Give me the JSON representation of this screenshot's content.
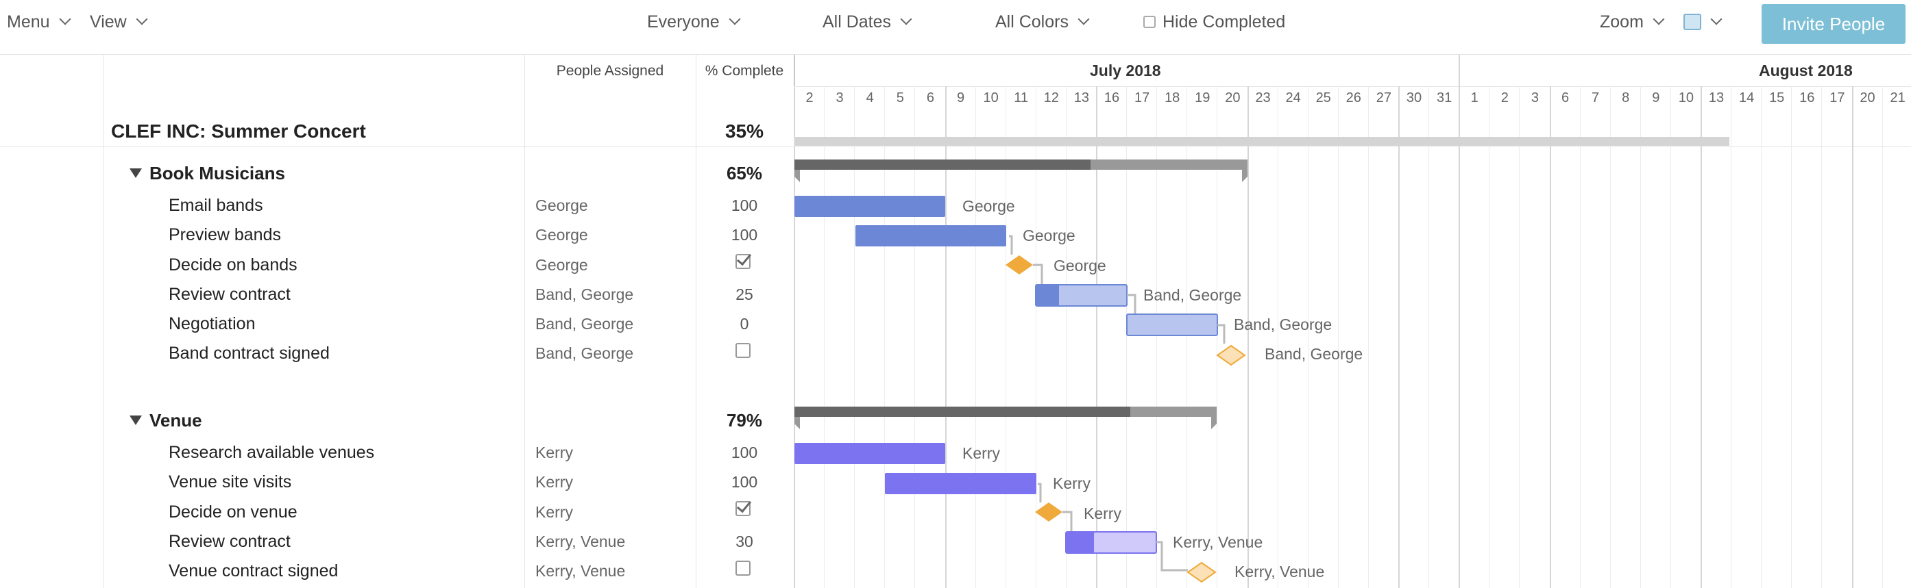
{
  "toolbar": {
    "menu_label": "Menu",
    "view_label": "View",
    "people_filter": "Everyone",
    "dates_filter": "All Dates",
    "colors_filter": "All Colors",
    "hide_completed_label": "Hide Completed",
    "zoom_label": "Zoom",
    "invite_label": "Invite People"
  },
  "columns": {
    "people": "People Assigned",
    "complete": "% Complete"
  },
  "months": [
    "July 2018",
    "August 2018"
  ],
  "days": [
    "2",
    "3",
    "4",
    "5",
    "6",
    "9",
    "10",
    "11",
    "12",
    "13",
    "16",
    "17",
    "18",
    "19",
    "20",
    "23",
    "24",
    "25",
    "26",
    "27",
    "30",
    "31",
    "1",
    "2",
    "3",
    "6",
    "7",
    "8",
    "9",
    "10",
    "13",
    "14",
    "15",
    "16",
    "17",
    "20",
    "21"
  ],
  "project": {
    "name": "CLEF INC: Summer Concert",
    "percent": "35%"
  },
  "groups": [
    {
      "name": "Book Musicians",
      "percent": "65%",
      "tasks": [
        {
          "name": "Email bands",
          "people": "George",
          "complete": "100"
        },
        {
          "name": "Preview bands",
          "people": "George",
          "complete": "100"
        },
        {
          "name": "Decide on bands",
          "people": "George",
          "complete": "checked"
        },
        {
          "name": "Review contract",
          "people": "Band, George",
          "complete": "25"
        },
        {
          "name": "Negotiation",
          "people": "Band, George",
          "complete": "0"
        },
        {
          "name": "Band contract signed",
          "people": "Band, George",
          "complete": "unchecked"
        }
      ]
    },
    {
      "name": "Venue",
      "percent": "79%",
      "tasks": [
        {
          "name": "Research available venues",
          "people": "Kerry",
          "complete": "100"
        },
        {
          "name": "Venue site visits",
          "people": "Kerry",
          "complete": "100"
        },
        {
          "name": "Decide on venue",
          "people": "Kerry",
          "complete": "checked"
        },
        {
          "name": "Review contract",
          "people": "Kerry, Venue",
          "complete": "30"
        },
        {
          "name": "Venue contract signed",
          "people": "Kerry, Venue",
          "complete": "unchecked"
        }
      ]
    }
  ],
  "colors": {
    "group1_bar": "#6b87d6",
    "group1_light": "#b8c5ee",
    "group2_bar": "#7b73ef",
    "group2_light": "#cfcaf9",
    "milestone": "#f0a93b",
    "milestone_open": "#fbe1b5",
    "summary_dark": "#666666",
    "summary_light": "#999999",
    "project_bar": "#d4d4d4"
  },
  "icons": {
    "dropdown": "chevron-down-icon",
    "collapse": "triangle-down-icon",
    "checkbox": "checkbox-icon",
    "color_swatch": "color-swatch-icon"
  }
}
